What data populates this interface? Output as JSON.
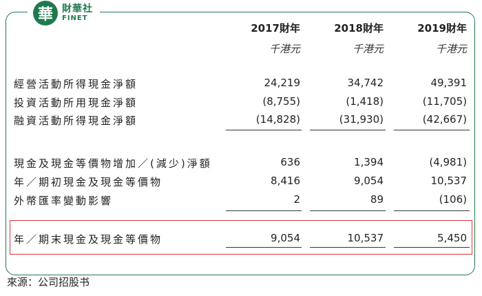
{
  "logo": {
    "mark": "華",
    "name_cn": "財華社",
    "name_en": "FINET"
  },
  "columns": [
    {
      "year": "2017財年",
      "unit": "千港元"
    },
    {
      "year": "2018財年",
      "unit": "千港元"
    },
    {
      "year": "2019財年",
      "unit": "千港元"
    }
  ],
  "rows": [
    {
      "label": "經營活動所得現金淨額",
      "values": [
        "24,219",
        "34,742",
        "49,391"
      ]
    },
    {
      "label": "投資活動所用現金淨額",
      "values": [
        "(8,755)",
        "(1,418)",
        "(11,705)"
      ]
    },
    {
      "label": "融資活動所得現金淨額",
      "values": [
        "(14,828)",
        "(31,930)",
        "(42,667)"
      ]
    },
    {
      "label": "現金及現金等價物增加／(減少)淨額",
      "values": [
        "636",
        "1,394",
        "(4,981)"
      ]
    },
    {
      "label": "年／期初現金及現金等價物",
      "values": [
        "8,416",
        "9,054",
        "10,537"
      ]
    },
    {
      "label": "外幣匯率變動影響",
      "values": [
        "2",
        "89",
        "(106)"
      ]
    },
    {
      "label": "年／期末現金及現金等價物",
      "values": [
        "9,054",
        "10,537",
        "5,450"
      ]
    }
  ],
  "source": "來源：公司招股书"
}
